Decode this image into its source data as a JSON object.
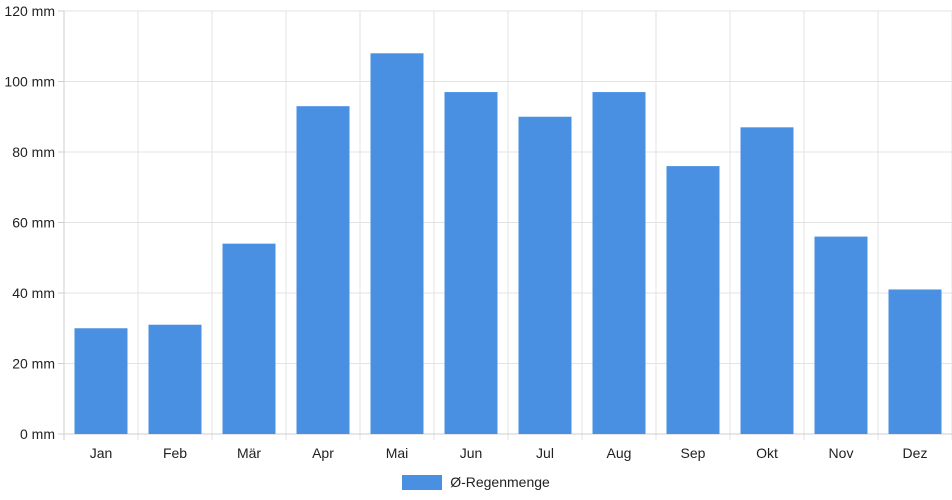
{
  "chart_data": {
    "type": "bar",
    "categories": [
      "Jan",
      "Feb",
      "Mär",
      "Apr",
      "Mai",
      "Jun",
      "Jul",
      "Aug",
      "Sep",
      "Okt",
      "Nov",
      "Dez"
    ],
    "series": [
      {
        "name": "Ø-Regenmenge",
        "values": [
          30,
          31,
          54,
          93,
          108,
          97,
          90,
          97,
          76,
          87,
          56,
          41
        ]
      }
    ],
    "ylim": [
      0,
      120
    ],
    "yticks": [
      0,
      20,
      40,
      60,
      80,
      100,
      120
    ],
    "ytick_labels": [
      "0 mm",
      "20 mm",
      "40 mm",
      "60 mm",
      "80 mm",
      "100 mm",
      "120 mm"
    ],
    "grid": true,
    "legend_position": "bottom-center",
    "bar_color": "#4a90e2"
  }
}
